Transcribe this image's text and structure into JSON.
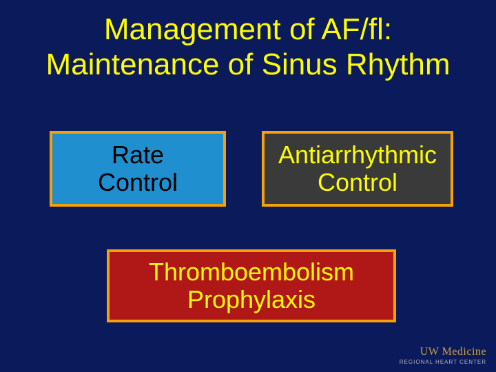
{
  "slide": {
    "background_color": "#0b1a5a",
    "title": {
      "line1": "Management of AF/fl:",
      "line2": "Maintenance of Sinus Rhythm",
      "color": "#fefc04",
      "fontsize": 44,
      "font_weight": 400
    },
    "boxes": {
      "rate_control": {
        "line1": "Rate",
        "line2": "Control",
        "fill": "#1f8fcf",
        "border_color": "#f5a20a",
        "border_width": 4,
        "text_color": "#000000",
        "fontsize": 36
      },
      "antiarrhythmic": {
        "line1": "Antiarrhythmic",
        "line2": "Control",
        "fill": "#3a3a3a",
        "border_color": "#f5a20a",
        "border_width": 4,
        "text_color": "#fefc04",
        "fontsize": 36
      },
      "thromboembolism": {
        "line1": "Thromboembolism",
        "line2": "Prophylaxis",
        "fill": "#b01818",
        "border_color": "#f5a20a",
        "border_width": 4,
        "text_color": "#fefc04",
        "fontsize": 36
      }
    },
    "logo": {
      "top": "UW Medicine",
      "sub": "REGIONAL HEART CENTER",
      "top_color": "#c9a24a",
      "sub_color": "#b2b6c4"
    }
  }
}
